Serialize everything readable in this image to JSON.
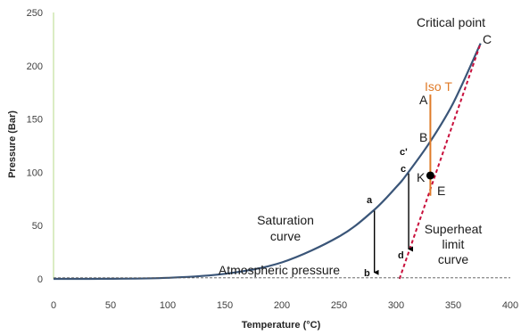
{
  "chart_data": {
    "type": "line",
    "xlabel": "Temperature (°C)",
    "ylabel": "Pressure (Bar)",
    "xlim": [
      0,
      400
    ],
    "ylim": [
      0,
      250
    ],
    "x_ticks": [
      "0",
      "50",
      "100",
      "150",
      "200",
      "250",
      "300",
      "350",
      "400"
    ],
    "y_ticks": [
      "0",
      "50",
      "100",
      "150",
      "200",
      "250"
    ],
    "grid": false,
    "series": [
      {
        "name": "Saturation curve",
        "color": "#3a5578",
        "x": [
          0,
          50,
          100,
          150,
          200,
          250,
          280,
          300,
          310,
          330,
          350,
          374
        ],
        "y": [
          0,
          0.1,
          1,
          4.8,
          15.5,
          39.7,
          64,
          86,
          99,
          129,
          165,
          221
        ]
      },
      {
        "name": "Superheat limit curve",
        "color": "#c8103c",
        "style": "dashed",
        "x": [
          303,
          374
        ],
        "y": [
          0,
          221
        ]
      },
      {
        "name": "Iso T",
        "color": "#e07b28",
        "x": [
          330,
          330
        ],
        "y": [
          173,
          78
        ]
      },
      {
        "name": "Atmospheric pressure",
        "color": "#555555",
        "style": "dashed",
        "x": [
          0,
          400
        ],
        "y": [
          1,
          1
        ]
      }
    ],
    "arrows": [
      {
        "from": "a",
        "to": "b",
        "x": [
          281,
          281
        ],
        "y": [
          64,
          1
        ]
      },
      {
        "from": "c",
        "to": "d",
        "x": [
          311,
          311
        ],
        "y": [
          99,
          23
        ]
      }
    ],
    "markers": [
      {
        "label": "K",
        "x": 330,
        "y": 97
      }
    ],
    "annotations": {
      "critical_point": "Critical point",
      "C": "C",
      "iso_t": "Iso T",
      "A": "A",
      "B": "B",
      "K": "K",
      "E": "E",
      "c_prime": "c'",
      "c": "c",
      "a": "a",
      "b": "b",
      "d": "d",
      "saturation_1": "Saturation",
      "saturation_2": "curve",
      "superheat_1": "Superheat",
      "superheat_2": "limit",
      "superheat_3": "curve",
      "atmospheric": "Atmospheric pressure"
    }
  }
}
